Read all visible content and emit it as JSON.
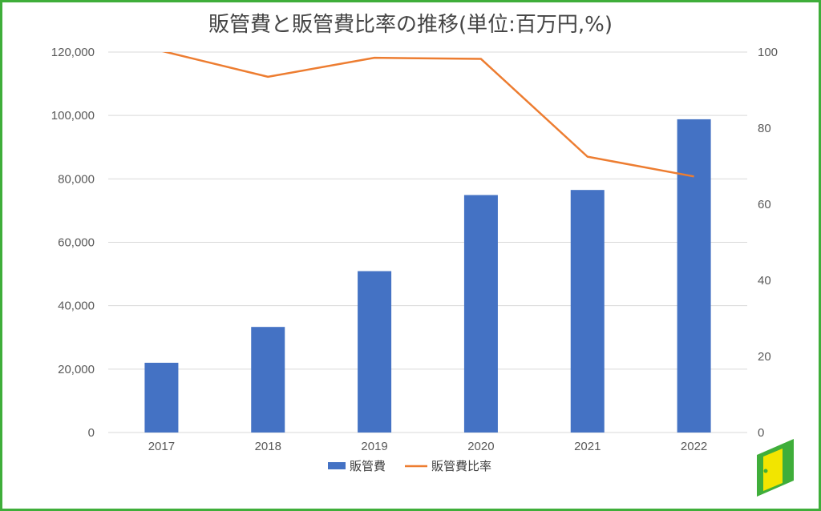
{
  "chart_data": {
    "type": "bar",
    "title": "販管費と販管費比率の推移(単位:百万円,%)",
    "categories": [
      "2017",
      "2018",
      "2019",
      "2020",
      "2021",
      "2022"
    ],
    "series": [
      {
        "name": "販管費",
        "type": "bar",
        "axis": "left",
        "values": [
          22000,
          33300,
          50900,
          74900,
          76500,
          98800
        ]
      },
      {
        "name": "販管費比率",
        "type": "line",
        "axis": "right",
        "values": [
          100.3,
          93.5,
          98.5,
          98.2,
          72.5,
          67.3
        ]
      }
    ],
    "y_left": {
      "ylim": [
        0,
        120000
      ],
      "ticks": [
        "0",
        "20,000",
        "40,000",
        "60,000",
        "80,000",
        "100,000",
        "120,000"
      ]
    },
    "y_right": {
      "ylim": [
        0,
        100
      ],
      "ticks": [
        "0",
        "20",
        "40",
        "60",
        "80",
        "100"
      ]
    },
    "grid": true,
    "legend_position": "bottom",
    "colors": {
      "bar": "#4472c4",
      "line": "#ed7d31",
      "grid": "#d9d9d9",
      "border": "#3fae3a",
      "logo_green": "#3fae3a",
      "logo_yellow": "#f2e500"
    }
  },
  "logo": {
    "icon": "green-door-icon"
  }
}
